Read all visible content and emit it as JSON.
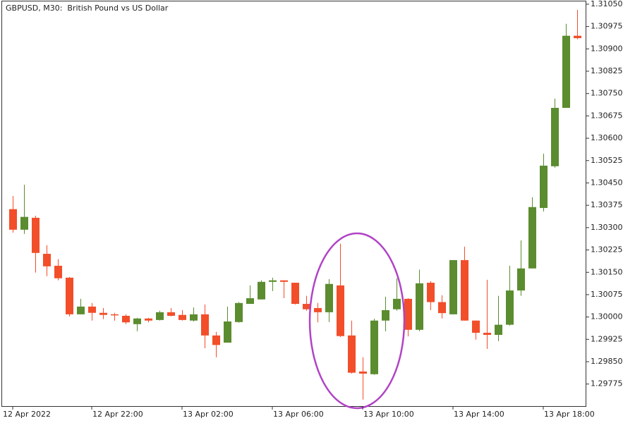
{
  "chart_data": {
    "type": "candlestick",
    "title": "GBPUSD, M30:  British Pound vs US Dollar",
    "categories": [
      "12 Apr 2022",
      null,
      null,
      null,
      null,
      null,
      null,
      "12 Apr 22:00",
      null,
      null,
      null,
      null,
      null,
      null,
      null,
      "13 Apr 02:00",
      null,
      null,
      null,
      null,
      null,
      null,
      null,
      "13 Apr 06:00",
      null,
      null,
      null,
      null,
      null,
      null,
      null,
      "13 Apr 10:00",
      null,
      null,
      null,
      null,
      null,
      null,
      null,
      "13 Apr 14:00",
      null,
      null,
      null,
      null,
      null,
      null,
      null,
      "13 Apr 18:00",
      null,
      null,
      null
    ],
    "open": [
      1.30362,
      1.30293,
      1.30333,
      1.30212,
      1.30172,
      1.30132,
      1.30009,
      1.30035,
      1.30014,
      1.30009,
      1.30004,
      1.29976,
      1.29995,
      1.2999,
      1.30016,
      1.30007,
      1.29988,
      1.30009,
      1.29938,
      1.29914,
      1.29983,
      1.30044,
      1.30059,
      1.30118,
      1.30123,
      1.30115,
      1.30044,
      1.3003,
      1.30016,
      1.30106,
      1.29938,
      1.29817,
      1.29808,
      1.29988,
      1.30026,
      1.30061,
      1.29957,
      1.30115,
      1.3005,
      1.30009,
      1.30191,
      1.29988,
      1.29947,
      1.2994,
      1.29974,
      1.30089,
      1.30163,
      1.30366,
      1.30506,
      1.30702,
      1.30944
    ],
    "high": [
      1.30406,
      1.30444,
      1.3034,
      1.30241,
      1.30194,
      1.30134,
      1.30061,
      1.30047,
      1.3003,
      1.30014,
      1.30009,
      1.29997,
      1.29997,
      1.30021,
      1.3003,
      1.30023,
      1.30032,
      1.30042,
      1.2995,
      1.30035,
      1.3005,
      1.30106,
      1.30123,
      1.30132,
      1.30123,
      1.30115,
      1.30071,
      1.30047,
      1.30127,
      1.30246,
      1.29988,
      1.29865,
      1.29994,
      1.30068,
      1.3013,
      1.30063,
      1.30159,
      1.3012,
      1.30073,
      1.30191,
      1.30236,
      1.29988,
      1.30125,
      1.30071,
      1.30172,
      1.30257,
      1.30402,
      1.30548,
      1.30733,
      1.30984,
      1.31031
    ],
    "low": [
      1.30283,
      1.30279,
      1.30149,
      1.30137,
      1.30123,
      1.30002,
      1.30009,
      1.29988,
      1.29993,
      1.29988,
      1.29976,
      1.29952,
      1.29982,
      1.29988,
      1.30002,
      1.29988,
      1.29985,
      1.29895,
      1.29865,
      1.29914,
      1.29981,
      1.30044,
      1.30059,
      1.30087,
      1.30063,
      1.30042,
      1.30021,
      1.29982,
      1.29983,
      1.29933,
      1.2981,
      1.29723,
      1.29806,
      1.29952,
      1.30021,
      1.29935,
      1.29952,
      1.30023,
      1.29995,
      1.30009,
      1.29988,
      1.29924,
      1.29893,
      1.29919,
      1.29971,
      1.30071,
      1.30163,
      1.30354,
      1.30501,
      1.30702,
      1.30932
    ],
    "close": [
      1.30293,
      1.30336,
      1.30215,
      1.3017,
      1.3013,
      1.30009,
      1.30035,
      1.30014,
      1.30007,
      1.30007,
      1.29982,
      1.29995,
      1.29988,
      1.30016,
      1.30004,
      1.2999,
      1.30009,
      1.29938,
      1.29906,
      1.29985,
      1.30047,
      1.30063,
      1.30118,
      1.30123,
      1.30118,
      1.30044,
      1.30026,
      1.30016,
      1.30111,
      1.29936,
      1.29813,
      1.2981,
      1.29988,
      1.30023,
      1.30061,
      1.29957,
      1.30113,
      1.3005,
      1.30013,
      1.30191,
      1.29988,
      1.29947,
      1.2994,
      1.29974,
      1.30089,
      1.30163,
      1.30369,
      1.30508,
      1.30702,
      1.30944,
      1.30936
    ],
    "up_color": "#5b8c2f",
    "down_color": "#f24e2a",
    "ylim": [
      1.29701,
      1.31064
    ],
    "yticks": [
      {
        "value": 1.3105,
        "label": "1.31050"
      },
      1.30975,
      {
        "value": 1.309,
        "label": "1.30900"
      },
      1.30825,
      {
        "value": 1.3075,
        "label": "1.30750"
      },
      1.30675,
      {
        "value": 1.306,
        "label": "1.30600"
      },
      1.30525,
      {
        "value": 1.3045,
        "label": "1.30450"
      },
      1.30375,
      {
        "value": 1.303,
        "label": "1.30300"
      },
      1.30225,
      {
        "value": 1.3015,
        "label": "1.30150"
      },
      1.30075,
      {
        "value": 1.3,
        "label": "1.30000"
      },
      1.29925,
      {
        "value": 1.2985,
        "label": "1.29850"
      },
      1.29775
    ]
  }
}
